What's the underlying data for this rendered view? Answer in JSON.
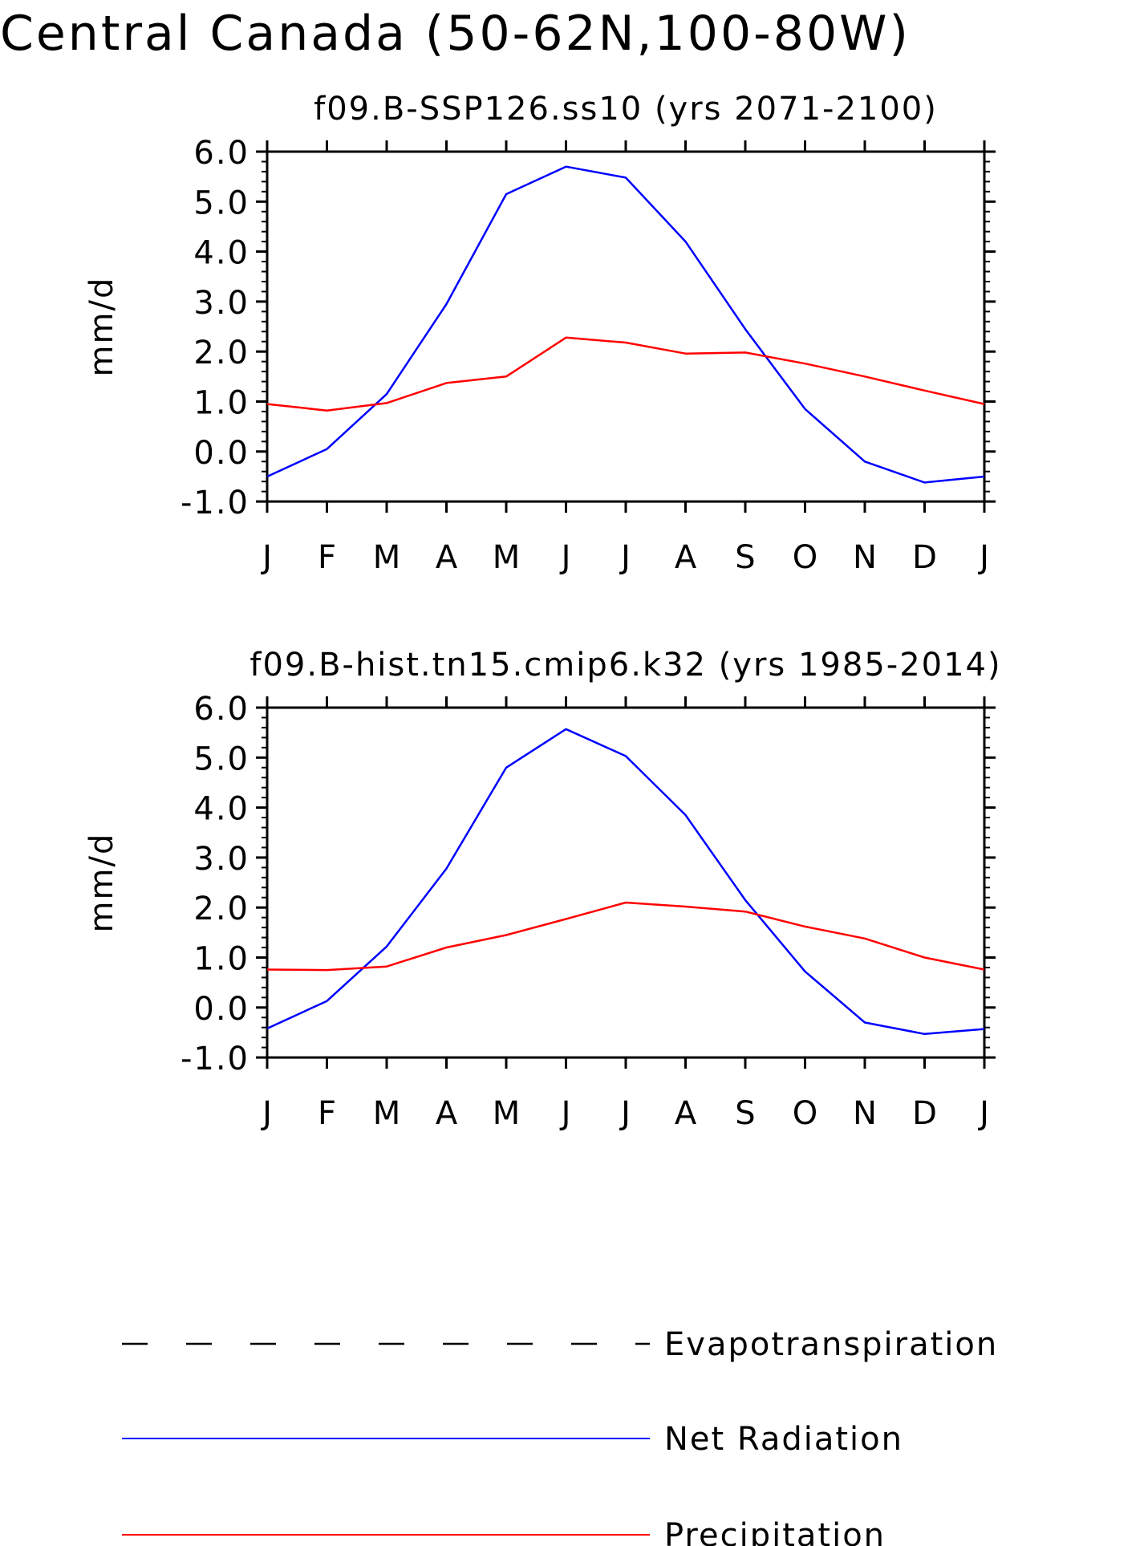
{
  "figure": {
    "title": "Central Canada (50-62N,100-80W)"
  },
  "legend": [
    {
      "label": "Evapotranspiration",
      "color": "#000000",
      "dash": true
    },
    {
      "label": "Net Radiation",
      "color": "#0000ff",
      "dash": false
    },
    {
      "label": "Precipitation",
      "color": "#ff0000",
      "dash": false
    }
  ],
  "chart_data": [
    {
      "type": "line",
      "title": "f09.B-SSP126.ss10 (yrs 2071-2100)",
      "ylabel": "mm/d",
      "xlabel": "",
      "ylim": [
        -1.0,
        6.0
      ],
      "yticks": [
        "6.0",
        "5.0",
        "4.0",
        "3.0",
        "2.0",
        "1.0",
        "0.0",
        "-1.0"
      ],
      "categories": [
        "J",
        "F",
        "M",
        "A",
        "M",
        "J",
        "J",
        "A",
        "S",
        "O",
        "N",
        "D",
        "J"
      ],
      "grid": false,
      "series": [
        {
          "name": "Net Radiation",
          "color": "#0000ff",
          "values": [
            -0.5,
            0.05,
            1.15,
            2.95,
            5.15,
            5.7,
            5.48,
            4.2,
            2.45,
            0.85,
            -0.2,
            -0.62,
            -0.5
          ]
        },
        {
          "name": "Precipitation",
          "color": "#ff0000",
          "values": [
            0.95,
            0.82,
            0.97,
            1.37,
            1.5,
            2.28,
            2.18,
            1.96,
            1.98,
            1.76,
            1.5,
            1.22,
            0.95
          ]
        }
      ]
    },
    {
      "type": "line",
      "title": "f09.B-hist.tn15.cmip6.k32 (yrs 1985-2014)",
      "ylabel": "mm/d",
      "xlabel": "",
      "ylim": [
        -1.0,
        6.0
      ],
      "yticks": [
        "6.0",
        "5.0",
        "4.0",
        "3.0",
        "2.0",
        "1.0",
        "0.0",
        "-1.0"
      ],
      "categories": [
        "J",
        "F",
        "M",
        "A",
        "M",
        "J",
        "J",
        "A",
        "S",
        "O",
        "N",
        "D",
        "J"
      ],
      "grid": false,
      "series": [
        {
          "name": "Net Radiation",
          "color": "#0000ff",
          "values": [
            -0.42,
            0.13,
            1.22,
            2.78,
            4.8,
            5.57,
            5.03,
            3.85,
            2.15,
            0.72,
            -0.3,
            -0.53,
            -0.43
          ]
        },
        {
          "name": "Precipitation",
          "color": "#ff0000",
          "values": [
            0.76,
            0.75,
            0.82,
            1.2,
            1.45,
            1.77,
            2.1,
            2.02,
            1.92,
            1.62,
            1.38,
            1.0,
            0.76
          ]
        }
      ]
    }
  ]
}
